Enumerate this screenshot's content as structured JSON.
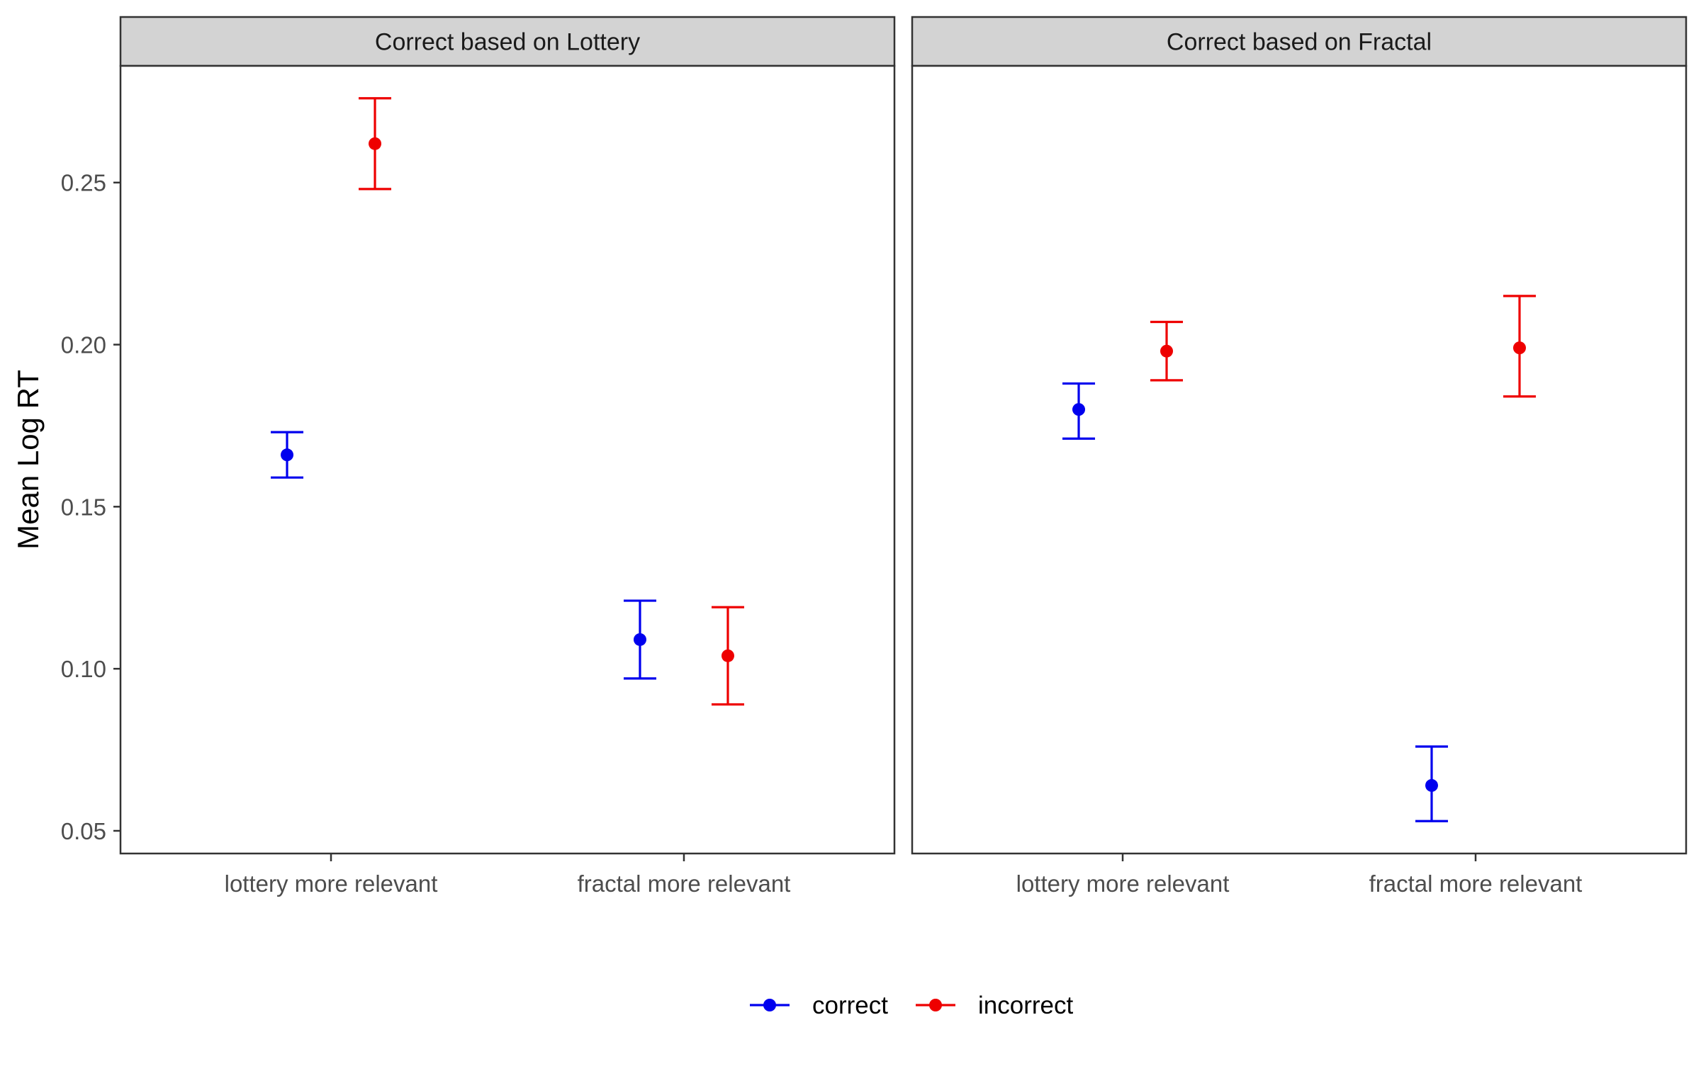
{
  "chart_data": {
    "type": "scatter",
    "subtype": "point-with-error-bars, faceted",
    "ylabel": "Mean Log RT",
    "xlabel": "",
    "ylim": [
      0.043,
      0.286
    ],
    "yticks": [
      0.05,
      0.1,
      0.15,
      0.2,
      0.25
    ],
    "ytick_labels": [
      "0.05",
      "0.10",
      "0.15",
      "0.20",
      "0.25"
    ],
    "categories": [
      "lottery more relevant",
      "fractal more relevant"
    ],
    "grid": false,
    "legend": {
      "position": "bottom",
      "entries": [
        {
          "name": "correct",
          "color": "#0000ee"
        },
        {
          "name": "incorrect",
          "color": "#ee0000"
        }
      ]
    },
    "panels": [
      {
        "title": "Correct based on Lottery",
        "series": [
          {
            "name": "correct",
            "color": "#0000ee",
            "points": [
              {
                "category": "lottery more relevant",
                "y": 0.166,
                "ymin": 0.159,
                "ymax": 0.173
              },
              {
                "category": "fractal more relevant",
                "y": 0.109,
                "ymin": 0.097,
                "ymax": 0.121
              }
            ]
          },
          {
            "name": "incorrect",
            "color": "#ee0000",
            "points": [
              {
                "category": "lottery more relevant",
                "y": 0.262,
                "ymin": 0.248,
                "ymax": 0.276
              },
              {
                "category": "fractal more relevant",
                "y": 0.104,
                "ymin": 0.089,
                "ymax": 0.119
              }
            ]
          }
        ]
      },
      {
        "title": "Correct based on Fractal",
        "series": [
          {
            "name": "correct",
            "color": "#0000ee",
            "points": [
              {
                "category": "lottery more relevant",
                "y": 0.18,
                "ymin": 0.171,
                "ymax": 0.188
              },
              {
                "category": "fractal more relevant",
                "y": 0.064,
                "ymin": 0.053,
                "ymax": 0.076
              }
            ]
          },
          {
            "name": "incorrect",
            "color": "#ee0000",
            "points": [
              {
                "category": "lottery more relevant",
                "y": 0.198,
                "ymin": 0.189,
                "ymax": 0.207
              },
              {
                "category": "fractal more relevant",
                "y": 0.199,
                "ymin": 0.184,
                "ymax": 0.215
              }
            ]
          }
        ]
      }
    ]
  }
}
